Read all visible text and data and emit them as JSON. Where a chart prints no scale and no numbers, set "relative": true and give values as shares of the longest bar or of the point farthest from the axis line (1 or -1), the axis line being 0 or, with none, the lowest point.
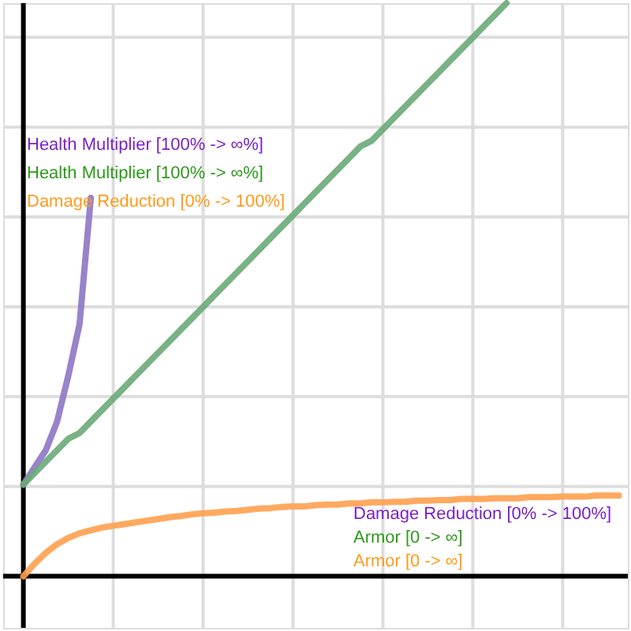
{
  "chart_data": {
    "type": "line",
    "relative": true,
    "grid": true,
    "categories": [
      null,
      null,
      null,
      null,
      null,
      null,
      null,
      null,
      null,
      null,
      null,
      null,
      null,
      null,
      null,
      null,
      null,
      null,
      null,
      null,
      null,
      null,
      null,
      null,
      null,
      null,
      null,
      null,
      null,
      null,
      null,
      null,
      null,
      null,
      null,
      null,
      null,
      null,
      null,
      null,
      null,
      null,
      null,
      null,
      null,
      null,
      null,
      null,
      null,
      null,
      null,
      null,
      null,
      null
    ],
    "series": [
      {
        "color": "#8e76c4",
        "values": [
          0.16,
          0.19,
          0.22,
          0.27,
          0.35,
          0.44,
          0.66,
          null,
          null,
          null,
          null,
          null,
          null,
          null,
          null,
          null,
          null,
          null,
          null,
          null,
          null,
          null,
          null,
          null,
          null,
          null,
          null,
          null,
          null,
          null,
          null,
          null,
          null,
          null,
          null,
          null,
          null,
          null,
          null,
          null,
          null,
          null,
          null,
          null,
          null,
          null,
          null,
          null,
          null,
          null,
          null,
          null,
          null,
          null
        ]
      },
      {
        "color": "#6aaa78",
        "values": [
          0.16,
          0.18,
          0.2,
          0.22,
          0.24,
          0.25,
          0.27,
          0.29,
          0.31,
          0.33,
          0.35,
          0.37,
          0.39,
          0.41,
          0.43,
          0.45,
          0.47,
          0.49,
          0.51,
          0.53,
          0.55,
          0.57,
          0.59,
          0.61,
          0.63,
          0.65,
          0.67,
          0.69,
          0.71,
          0.73,
          0.75,
          0.76,
          0.78,
          0.8,
          0.82,
          0.84,
          0.86,
          0.88,
          0.9,
          0.92,
          0.94,
          0.96,
          0.98,
          1.0,
          null,
          null,
          null,
          null,
          null,
          null,
          null,
          null,
          null,
          null
        ]
      },
      {
        "color": "#ffa04f",
        "values": [
          0,
          0.022,
          0.041,
          0.056,
          0.067,
          0.075,
          0.08,
          0.085,
          0.088,
          0.091,
          0.094,
          0.097,
          0.1,
          0.103,
          0.105,
          0.108,
          0.11,
          0.111,
          0.113,
          0.114,
          0.116,
          0.118,
          0.119,
          0.121,
          0.122,
          0.122,
          0.124,
          0.125,
          0.125,
          0.127,
          0.127,
          0.129,
          0.129,
          0.13,
          0.13,
          0.132,
          0.132,
          0.133,
          0.133,
          0.135,
          0.135,
          0.135,
          0.136,
          0.136,
          0.136,
          0.138,
          0.138,
          0.138,
          0.139,
          0.139,
          0.139,
          0.141,
          0.141,
          0.141
        ]
      }
    ],
    "annotations": [
      "Health Multiplier [100% -> ∞%]",
      "Health Multiplier [100% -> ∞%]",
      "Damage Reduction [0% -> 100%]",
      "Damage Reduction [0% -> 100%]",
      "Armor [0 -> ∞]",
      "Armor [0 -> ∞]"
    ]
  }
}
